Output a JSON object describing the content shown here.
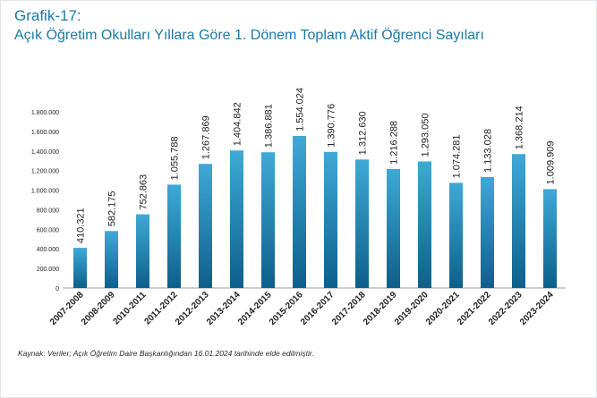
{
  "header": {
    "title_line1": "Grafik-17:",
    "title_line2": "Açık Öğretim Okulları Yıllara Göre 1. Dönem Toplam Aktif Öğrenci Sayıları"
  },
  "footer": {
    "source_note": "Kaynak: Veriler; Açık Öğretim Daire Başkanlığından 16.01.2024 tarihinde elde edilmiştir."
  },
  "colors": {
    "title": "#1b7aa5",
    "bar_top": "#3fa9d6",
    "bar_bottom": "#0d5f8a",
    "axis": "#9aa0a6",
    "text": "#222222"
  },
  "chart_data": {
    "type": "bar",
    "title": "Açık Öğretim Okulları Yıllara Göre 1. Dönem Toplam Aktif Öğrenci Sayıları",
    "xlabel": "",
    "ylabel": "",
    "ylim": [
      0,
      1800000
    ],
    "ytick_values": [
      0,
      200000,
      400000,
      600000,
      800000,
      1000000,
      1200000,
      1400000,
      1600000,
      1800000
    ],
    "ytick_labels": [
      "0",
      "200.000",
      "400.000",
      "600.000",
      "800.000",
      "1.000.000",
      "1.200.000",
      "1.400.000",
      "1.600.000",
      "1.800.000"
    ],
    "grid": false,
    "categories": [
      "2007-2008",
      "2008-2009",
      "2010-2011",
      "2011-2012",
      "2012-2013",
      "2013-2014",
      "2014-2015",
      "2015-2016",
      "2016-2017",
      "2017-2018",
      "2018-2019",
      "2019-2020",
      "2020-2021",
      "2021-2022",
      "2022-2023",
      "2023-2024"
    ],
    "values": [
      410321,
      582175,
      752863,
      1055788,
      1267869,
      1404842,
      1386881,
      1554024,
      1390776,
      1312630,
      1216288,
      1293050,
      1074281,
      1133028,
      1368214,
      1009909
    ],
    "value_labels": [
      "410.321",
      "582.175",
      "752.863",
      "1.055.788",
      "1.267.869",
      "1.404.842",
      "1.386.881",
      "1.554.024",
      "1.390.776",
      "1.312.630",
      "1.216.288",
      "1.293.050",
      "1.074.281",
      "1.133.028",
      "1.368.214",
      "1.009.909"
    ]
  }
}
